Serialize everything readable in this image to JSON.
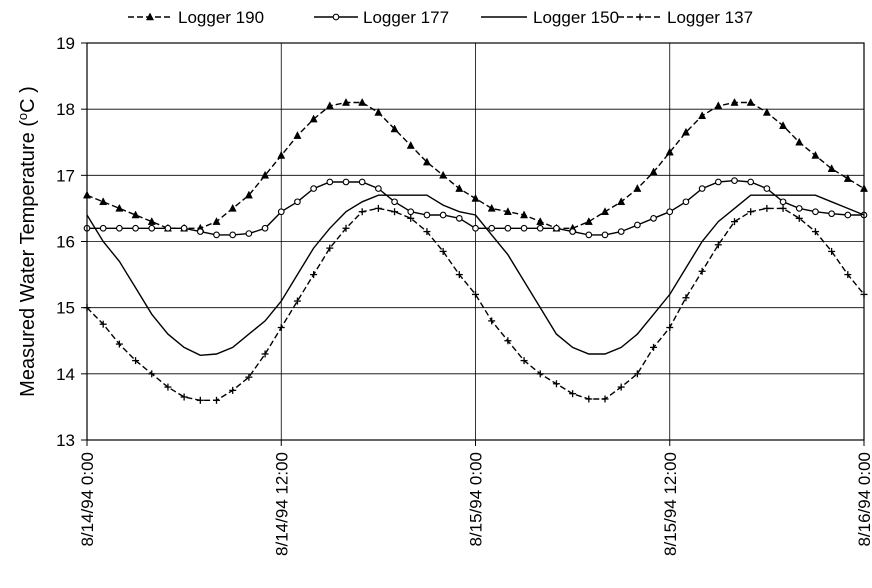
{
  "chart_data": {
    "type": "line",
    "ylabel": "Measured Water Temperature (°C)",
    "ylabel_parts": [
      "Measured Water Temperature (",
      "o",
      "C )"
    ],
    "ylim": [
      13,
      19
    ],
    "yticks": [
      13,
      14,
      15,
      16,
      17,
      18,
      19
    ],
    "xlim": [
      0,
      48
    ],
    "x_unit": "hours since 8/14/94 0:00",
    "xticks": [
      0,
      12,
      24,
      36,
      48
    ],
    "xtick_labels": [
      "8/14/94 0:00",
      "8/14/94 12:00",
      "8/15/94 0:00",
      "8/15/94 12:00",
      "8/16/94 0:00"
    ],
    "grid": true,
    "legend_position": "top",
    "series": [
      {
        "name": "Logger 190",
        "marker": "triangle",
        "dash": "dashed",
        "x": [
          0,
          1,
          2,
          3,
          4,
          5,
          6,
          7,
          8,
          9,
          10,
          11,
          12,
          13,
          14,
          15,
          16,
          17,
          18,
          19,
          20,
          21,
          22,
          23,
          24,
          25,
          26,
          27,
          28,
          29,
          30,
          31,
          32,
          33,
          34,
          35,
          36,
          37,
          38,
          39,
          40,
          41,
          42,
          43,
          44,
          45,
          46,
          47,
          48
        ],
        "values": [
          16.7,
          16.6,
          16.5,
          16.4,
          16.3,
          16.2,
          16.2,
          16.2,
          16.3,
          16.5,
          16.7,
          17.0,
          17.3,
          17.6,
          17.85,
          18.05,
          18.1,
          18.1,
          17.95,
          17.7,
          17.45,
          17.2,
          17.0,
          16.8,
          16.65,
          16.5,
          16.45,
          16.4,
          16.3,
          16.2,
          16.2,
          16.3,
          16.45,
          16.6,
          16.8,
          17.05,
          17.35,
          17.65,
          17.9,
          18.05,
          18.1,
          18.1,
          17.95,
          17.75,
          17.5,
          17.3,
          17.1,
          16.95,
          16.8
        ]
      },
      {
        "name": "Logger 177",
        "marker": "circle",
        "dash": "solid",
        "x": [
          0,
          1,
          2,
          3,
          4,
          5,
          6,
          7,
          8,
          9,
          10,
          11,
          12,
          13,
          14,
          15,
          16,
          17,
          18,
          19,
          20,
          21,
          22,
          23,
          24,
          25,
          26,
          27,
          28,
          29,
          30,
          31,
          32,
          33,
          34,
          35,
          36,
          37,
          38,
          39,
          40,
          41,
          42,
          43,
          44,
          45,
          46,
          47,
          48
        ],
        "values": [
          16.2,
          16.2,
          16.2,
          16.2,
          16.2,
          16.2,
          16.2,
          16.15,
          16.1,
          16.1,
          16.12,
          16.2,
          16.45,
          16.6,
          16.8,
          16.9,
          16.9,
          16.9,
          16.8,
          16.6,
          16.45,
          16.4,
          16.4,
          16.35,
          16.2,
          16.2,
          16.2,
          16.2,
          16.2,
          16.2,
          16.15,
          16.1,
          16.1,
          16.15,
          16.25,
          16.35,
          16.45,
          16.6,
          16.8,
          16.9,
          16.92,
          16.9,
          16.8,
          16.6,
          16.5,
          16.45,
          16.42,
          16.4,
          16.4
        ]
      },
      {
        "name": "Logger 150",
        "marker": "none",
        "dash": "solid",
        "x": [
          0,
          1,
          2,
          3,
          4,
          5,
          6,
          7,
          8,
          9,
          10,
          11,
          12,
          13,
          14,
          15,
          16,
          17,
          18,
          19,
          20,
          21,
          22,
          23,
          24,
          25,
          26,
          27,
          28,
          29,
          30,
          31,
          32,
          33,
          34,
          35,
          36,
          37,
          38,
          39,
          40,
          41,
          42,
          43,
          44,
          45,
          46,
          47,
          48
        ],
        "values": [
          16.4,
          16.0,
          15.7,
          15.3,
          14.9,
          14.6,
          14.4,
          14.28,
          14.3,
          14.4,
          14.6,
          14.8,
          15.1,
          15.5,
          15.9,
          16.2,
          16.45,
          16.6,
          16.7,
          16.7,
          16.7,
          16.7,
          16.55,
          16.45,
          16.4,
          16.1,
          15.8,
          15.4,
          15.0,
          14.6,
          14.4,
          14.3,
          14.3,
          14.4,
          14.6,
          14.9,
          15.2,
          15.6,
          16.0,
          16.3,
          16.5,
          16.7,
          16.7,
          16.7,
          16.7,
          16.7,
          16.6,
          16.5,
          16.4
        ]
      },
      {
        "name": "Logger 137",
        "marker": "plus",
        "dash": "dashed",
        "x": [
          0,
          1,
          2,
          3,
          4,
          5,
          6,
          7,
          8,
          9,
          10,
          11,
          12,
          13,
          14,
          15,
          16,
          17,
          18,
          19,
          20,
          21,
          22,
          23,
          24,
          25,
          26,
          27,
          28,
          29,
          30,
          31,
          32,
          33,
          34,
          35,
          36,
          37,
          38,
          39,
          40,
          41,
          42,
          43,
          44,
          45,
          46,
          47,
          48
        ],
        "values": [
          15.0,
          14.75,
          14.45,
          14.2,
          14.0,
          13.8,
          13.65,
          13.6,
          13.6,
          13.75,
          13.95,
          14.3,
          14.7,
          15.1,
          15.5,
          15.9,
          16.2,
          16.45,
          16.5,
          16.45,
          16.35,
          16.15,
          15.85,
          15.5,
          15.2,
          14.8,
          14.5,
          14.2,
          14.0,
          13.85,
          13.7,
          13.62,
          13.62,
          13.8,
          14.0,
          14.4,
          14.7,
          15.15,
          15.55,
          15.95,
          16.3,
          16.45,
          16.5,
          16.5,
          16.35,
          16.15,
          15.85,
          15.5,
          15.2
        ]
      }
    ]
  }
}
